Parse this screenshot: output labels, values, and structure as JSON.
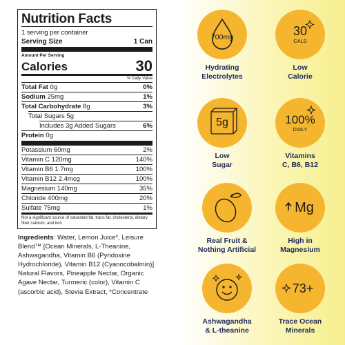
{
  "label": {
    "title": "Nutrition Facts",
    "servings_per_container": "1 serving per container",
    "serving_size_label": "Serving Size",
    "serving_size_value": "1 Can",
    "amount_per_serving": "Amount Per Serving",
    "calories_label": "Calories",
    "calories_value": "30",
    "dv_header": "% Daily Value",
    "macros": [
      {
        "name": "Total Fat",
        "amount": "0g",
        "dv": "0%"
      },
      {
        "name": "Sodium",
        "amount": "25mg",
        "dv": "1%"
      },
      {
        "name": "Total Carbohydrate",
        "amount": "8g",
        "dv": "3%"
      },
      {
        "name": "Total Sugars",
        "amount": "5g",
        "dv": ""
      },
      {
        "name": "Includes 3g Added Sugars",
        "amount": "",
        "dv": "6%"
      },
      {
        "name": "Protein",
        "amount": "0g",
        "dv": ""
      }
    ],
    "micros": [
      {
        "name": "Potassium",
        "amount": "60mg",
        "dv": "2%"
      },
      {
        "name": "Vitamin C",
        "amount": "120mg",
        "dv": "140%"
      },
      {
        "name": "Vitamin B6",
        "amount": "1.7mg",
        "dv": "100%"
      },
      {
        "name": "Vitamin B12",
        "amount": "2.4mcg",
        "dv": "100%"
      },
      {
        "name": "Magnesium",
        "amount": "140mg",
        "dv": "35%"
      },
      {
        "name": "Chloride",
        "amount": "400mg",
        "dv": "20%"
      },
      {
        "name": "Sulfate",
        "amount": "75mg",
        "dv": "1%"
      }
    ],
    "footnote": "Not a significant source of saturated fat, trans fat, cholesterol, dietary fiber calcium, and iron"
  },
  "ingredients": {
    "label": "Ingredients",
    "text": ": Water, Lemon Juice*, Leisure Blend™ [Ocean Minerals, L-Theanine, Ashwagandha, Vitamin B6 (Pyridoxine Hydrochloride), Vitamin B12 (Cyanocobalmin)] Natural Flavors, Pineapple Nectar, Organic Agave Nectar, Turmeric (color), Vitamin C (ascorbic acid), Stevia Extract, *Concentrate"
  },
  "badges": [
    {
      "icon": "droplet-icon",
      "icon_text": "700mg",
      "line1": "Hydrating",
      "line2": "Electrolytes"
    },
    {
      "icon": "sparkle-icon",
      "icon_text": "30",
      "icon_sub": "CALS",
      "line1": "Low",
      "line2": "Calorie"
    },
    {
      "icon": "sugar-cube-icon",
      "icon_text": "5g",
      "line1": "Low",
      "line2": "Sugar"
    },
    {
      "icon": "sparkle-icon",
      "icon_text": "100%",
      "icon_sub": "DAILY",
      "line1": "Vitamins",
      "line2": "C, B6, B12"
    },
    {
      "icon": "lemon-icon",
      "icon_text": "",
      "line1": "Real Fruit &",
      "line2": "Nothing Artificial"
    },
    {
      "icon": "magnesium-icon",
      "icon_text": "Mg",
      "line1": "High in",
      "line2": "Magnesium"
    },
    {
      "icon": "smiley-icon",
      "icon_text": "",
      "line1": "Ashwagandha",
      "line2": "& L-theanine"
    },
    {
      "icon": "mineral-icon",
      "icon_text": "73+",
      "line1": "Trace Ocean",
      "line2": "Minerals"
    }
  ],
  "colors": {
    "badge": "#f5b52f",
    "caption": "#1f2a5a",
    "background_accent": "#f7ef8f"
  }
}
